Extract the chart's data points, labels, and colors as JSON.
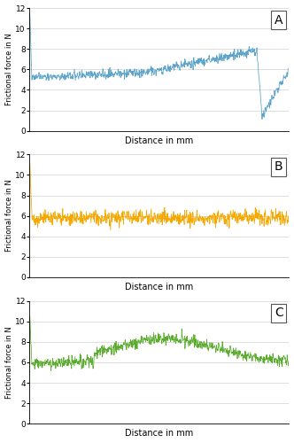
{
  "panel_labels": [
    "A",
    "B",
    "C"
  ],
  "colors": [
    "#5ba3c9",
    "#f5a800",
    "#5aab2e"
  ],
  "ylabel": "Frictional force in N",
  "xlabel": "Distance in mm",
  "ylim": [
    0,
    12
  ],
  "yticks": [
    0,
    2,
    4,
    6,
    8,
    10,
    12
  ],
  "n_points": 800,
  "figsize": [
    3.32,
    5.0
  ],
  "dpi": 100
}
